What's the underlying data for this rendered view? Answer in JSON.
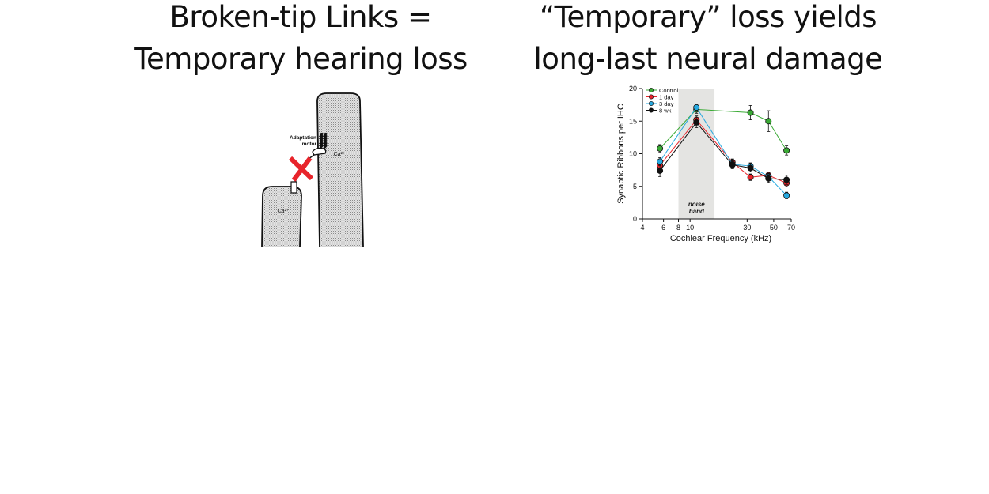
{
  "left_panel": {
    "title_line1": "Broken-tip Links =",
    "title_line2": "Temporary hearing loss",
    "diagram": {
      "motor_label_line1": "Adaptation",
      "motor_label_line2": "motor",
      "ion_label_tall": "Ca²⁺",
      "ion_label_short": "Ca²⁺",
      "x_mark_color": "#e8242b"
    }
  },
  "right_panel": {
    "title_line1": "“Temporary” loss yields",
    "title_line2": "long-last neural damage"
  },
  "chart_data": {
    "type": "line",
    "xlabel": "Cochlear Frequency (kHz)",
    "ylabel": "Synaptic Ribbons per IHC",
    "x_scale": "log",
    "xlim": [
      4,
      70
    ],
    "ylim": [
      0,
      20
    ],
    "x_ticks": [
      4,
      6,
      8,
      10,
      30,
      50,
      70
    ],
    "y_ticks": [
      0,
      5,
      10,
      15,
      20
    ],
    "x_tick_labels": [
      "4",
      "6",
      "8",
      "10",
      "30",
      "50",
      "70"
    ],
    "y_tick_labels": [
      "0",
      "5",
      "10",
      "15",
      "20"
    ],
    "shaded_band": {
      "x_range": [
        8,
        16
      ],
      "label_line1": "noise",
      "label_line2": "band",
      "color": "#e4e4e2"
    },
    "legend_position": "top-left",
    "series": [
      {
        "name": "Control",
        "color": "#3aaa35",
        "x": [
          5.6,
          11.3,
          32,
          45.2,
          64
        ],
        "y": [
          10.8,
          16.8,
          16.3,
          15.0,
          10.5
        ],
        "err": [
          0.6,
          0.6,
          1.1,
          1.6,
          0.7
        ]
      },
      {
        "name": "1 day",
        "color": "#e8242b",
        "x": [
          5.6,
          11.3,
          22.6,
          32,
          45.2,
          64
        ],
        "y": [
          8.2,
          15.2,
          8.7,
          6.4,
          6.7,
          5.5
        ],
        "err": [
          0.6,
          0.6,
          0.5,
          0.5,
          0.5,
          0.6
        ]
      },
      {
        "name": "3 day",
        "color": "#26a9e0",
        "x": [
          5.6,
          11.3,
          22.6,
          32,
          45.2,
          64
        ],
        "y": [
          8.8,
          17.1,
          8.4,
          8.1,
          6.5,
          3.6
        ],
        "err": [
          0.6,
          0.5,
          0.5,
          0.5,
          0.5,
          0.5
        ]
      },
      {
        "name": "8 wk",
        "color": "#111111",
        "x": [
          5.6,
          11.3,
          22.6,
          32,
          45.2,
          64
        ],
        "y": [
          7.4,
          14.8,
          8.3,
          7.8,
          6.2,
          6.0
        ],
        "err": [
          0.9,
          0.8,
          0.6,
          0.6,
          0.6,
          0.7
        ]
      }
    ]
  }
}
